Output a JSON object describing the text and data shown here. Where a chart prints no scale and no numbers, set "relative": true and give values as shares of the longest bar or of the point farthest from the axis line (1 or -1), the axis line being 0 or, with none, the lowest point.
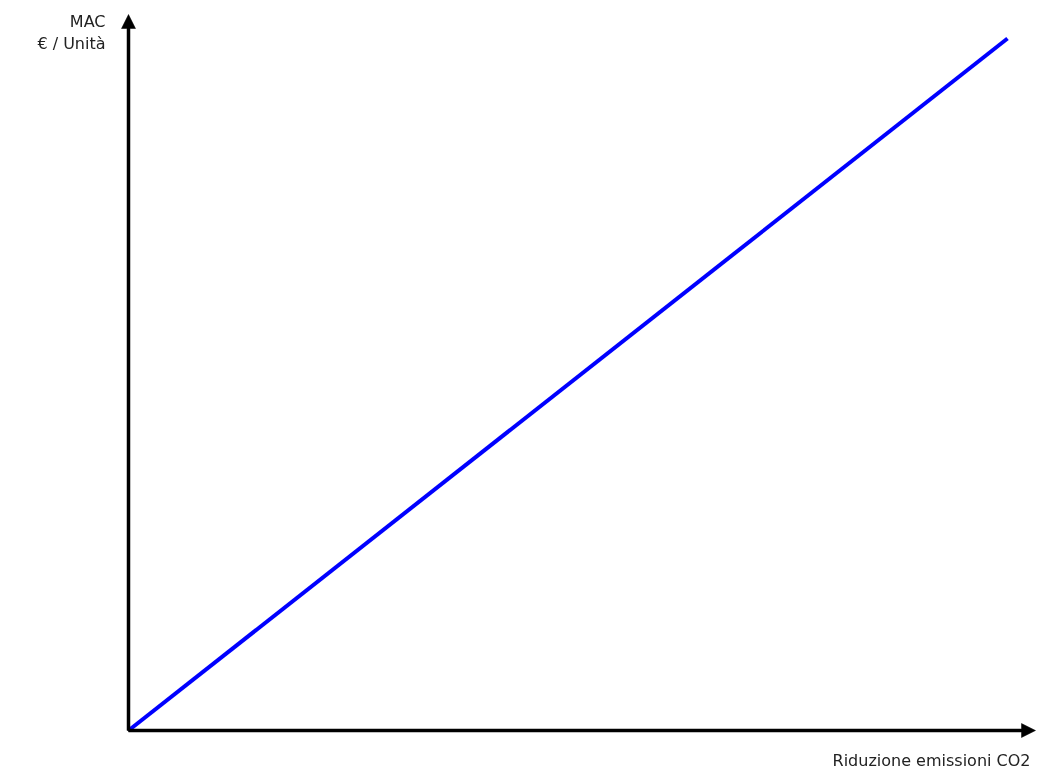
{
  "chart_data": {
    "type": "line",
    "relative": true,
    "ylabel": "MAC\n€ / Unità",
    "xlabel": "Riduzione emissioni CO2",
    "categories": [
      null,
      null
    ],
    "series": [
      {
        "color": "#0000ff",
        "values": [
          0,
          1
        ]
      }
    ],
    "marker": "none",
    "line_style": "solid"
  }
}
